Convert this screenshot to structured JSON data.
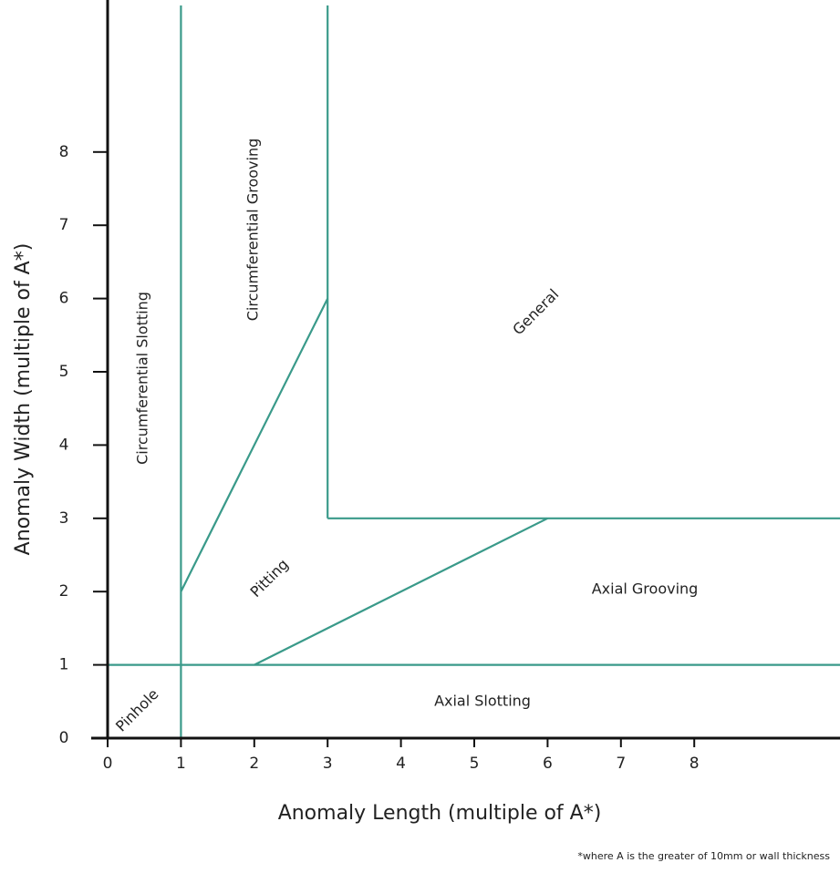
{
  "chart_data": {
    "type": "region",
    "x_label": "Anomaly Length (multiple of A*)",
    "y_label": "Anomaly Width (multiple of A*)",
    "xlim": [
      0,
      10
    ],
    "ylim": [
      0,
      10
    ],
    "xticks": [
      0,
      1,
      2,
      3,
      4,
      5,
      6,
      7,
      8
    ],
    "yticks": [
      0,
      1,
      2,
      3,
      4,
      5,
      6,
      7,
      8
    ],
    "color": "#3a9a8a",
    "boundaries": [
      [
        [
          1,
          0
        ],
        [
          1,
          10
        ]
      ],
      [
        [
          3,
          3
        ],
        [
          3,
          10
        ]
      ],
      [
        [
          3,
          3
        ],
        [
          10,
          3
        ]
      ],
      [
        [
          0,
          1
        ],
        [
          10,
          1
        ]
      ],
      [
        [
          1,
          2
        ],
        [
          3,
          6
        ]
      ],
      [
        [
          2,
          1
        ],
        [
          6,
          3
        ]
      ]
    ],
    "regions": [
      {
        "label": "Circumferential Slotting"
      },
      {
        "label": "Circumferential Grooving"
      },
      {
        "label": "General"
      },
      {
        "label": "Pitting"
      },
      {
        "label": "Axial Grooving"
      },
      {
        "label": "Axial Slotting"
      },
      {
        "label": "Pinhole"
      }
    ],
    "note": "*where A is the greater of 10mm or wall thickness"
  }
}
